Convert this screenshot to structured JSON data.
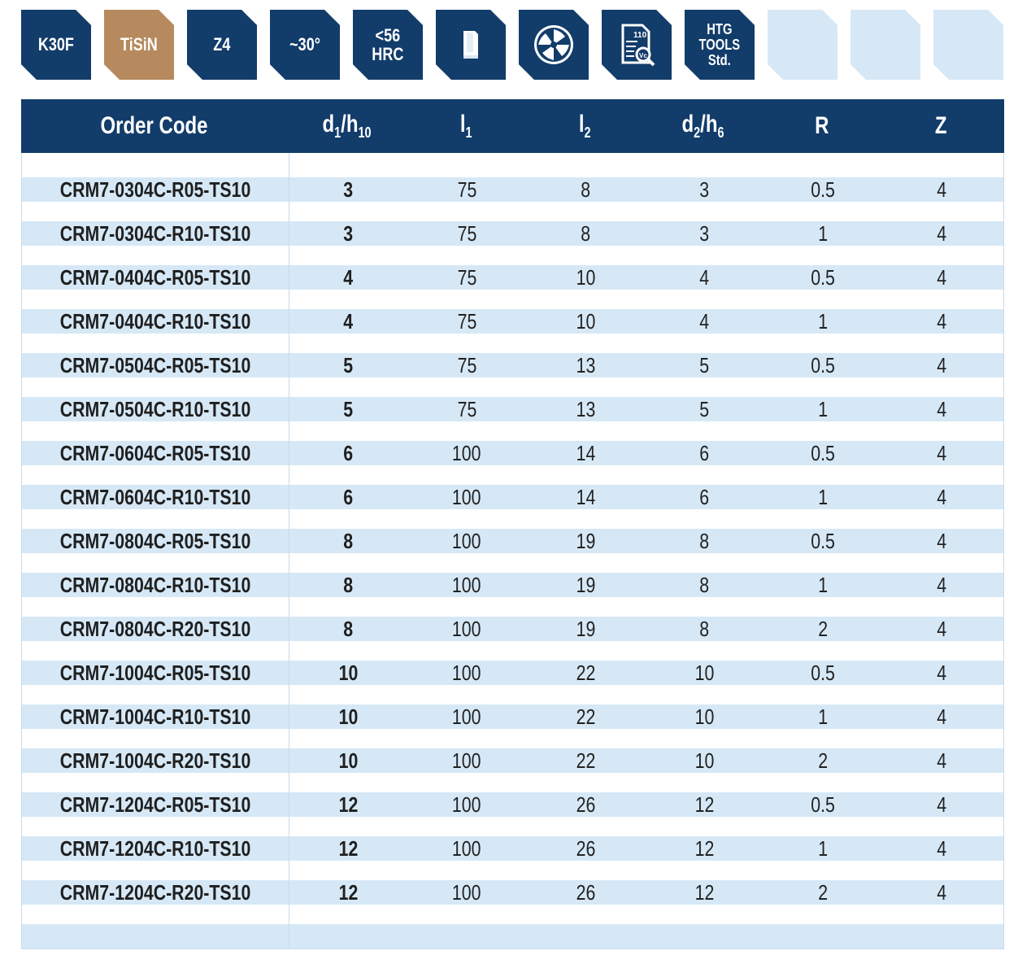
{
  "badges": [
    {
      "label": "K30F"
    },
    {
      "label": "TiSiN"
    },
    {
      "label": "Z4"
    },
    {
      "label": "~30°"
    },
    {
      "line1": "<56",
      "line2": "HRC"
    },
    {
      "icon": "shank-cylinder-icon"
    },
    {
      "icon": "corner-radius-endmill-cross-section-icon"
    },
    {
      "icon": "cutting-data-document-icon",
      "value": "110",
      "unit": "Vc"
    },
    {
      "line1": "HTG",
      "line2": "TOOLS",
      "line3": "Std."
    },
    {
      "empty": true
    },
    {
      "empty": true
    },
    {
      "empty": true
    }
  ],
  "colors": {
    "navy": "#123c6a",
    "bronze": "#b68a5e",
    "light_blue": "#d6e8f6"
  },
  "table": {
    "headers": {
      "order_code": "Order Code",
      "d1": "d",
      "d1_sub1": "1",
      "d1_sep": "/",
      "d1_h": "h",
      "d1_sub2": "10",
      "l1": "l",
      "l1_sub": "1",
      "l2": "l",
      "l2_sub": "2",
      "d2": "d",
      "d2_sub1": "2",
      "d2_sep": "/",
      "d2_h": "h",
      "d2_sub2": "6",
      "r": "R",
      "z": "Z"
    },
    "rows": [
      {
        "code": "CRM7-0304C-R05-TS10",
        "d1": "3",
        "l1": "75",
        "l2": "8",
        "d2": "3",
        "r": "0.5",
        "z": "4"
      },
      {
        "code": "CRM7-0304C-R10-TS10",
        "d1": "3",
        "l1": "75",
        "l2": "8",
        "d2": "3",
        "r": "1",
        "z": "4"
      },
      {
        "code": "CRM7-0404C-R05-TS10",
        "d1": "4",
        "l1": "75",
        "l2": "10",
        "d2": "4",
        "r": "0.5",
        "z": "4"
      },
      {
        "code": "CRM7-0404C-R10-TS10",
        "d1": "4",
        "l1": "75",
        "l2": "10",
        "d2": "4",
        "r": "1",
        "z": "4"
      },
      {
        "code": "CRM7-0504C-R05-TS10",
        "d1": "5",
        "l1": "75",
        "l2": "13",
        "d2": "5",
        "r": "0.5",
        "z": "4"
      },
      {
        "code": "CRM7-0504C-R10-TS10",
        "d1": "5",
        "l1": "75",
        "l2": "13",
        "d2": "5",
        "r": "1",
        "z": "4"
      },
      {
        "code": "CRM7-0604C-R05-TS10",
        "d1": "6",
        "l1": "100",
        "l2": "14",
        "d2": "6",
        "r": "0.5",
        "z": "4"
      },
      {
        "code": "CRM7-0604C-R10-TS10",
        "d1": "6",
        "l1": "100",
        "l2": "14",
        "d2": "6",
        "r": "1",
        "z": "4"
      },
      {
        "code": "CRM7-0804C-R05-TS10",
        "d1": "8",
        "l1": "100",
        "l2": "19",
        "d2": "8",
        "r": "0.5",
        "z": "4"
      },
      {
        "code": "CRM7-0804C-R10-TS10",
        "d1": "8",
        "l1": "100",
        "l2": "19",
        "d2": "8",
        "r": "1",
        "z": "4"
      },
      {
        "code": "CRM7-0804C-R20-TS10",
        "d1": "8",
        "l1": "100",
        "l2": "19",
        "d2": "8",
        "r": "2",
        "z": "4"
      },
      {
        "code": "CRM7-1004C-R05-TS10",
        "d1": "10",
        "l1": "100",
        "l2": "22",
        "d2": "10",
        "r": "0.5",
        "z": "4"
      },
      {
        "code": "CRM7-1004C-R10-TS10",
        "d1": "10",
        "l1": "100",
        "l2": "22",
        "d2": "10",
        "r": "1",
        "z": "4"
      },
      {
        "code": "CRM7-1004C-R20-TS10",
        "d1": "10",
        "l1": "100",
        "l2": "22",
        "d2": "10",
        "r": "2",
        "z": "4"
      },
      {
        "code": "CRM7-1204C-R05-TS10",
        "d1": "12",
        "l1": "100",
        "l2": "26",
        "d2": "12",
        "r": "0.5",
        "z": "4"
      },
      {
        "code": "CRM7-1204C-R10-TS10",
        "d1": "12",
        "l1": "100",
        "l2": "26",
        "d2": "12",
        "r": "1",
        "z": "4"
      },
      {
        "code": "CRM7-1204C-R20-TS10",
        "d1": "12",
        "l1": "100",
        "l2": "26",
        "d2": "12",
        "r": "2",
        "z": "4"
      }
    ]
  }
}
